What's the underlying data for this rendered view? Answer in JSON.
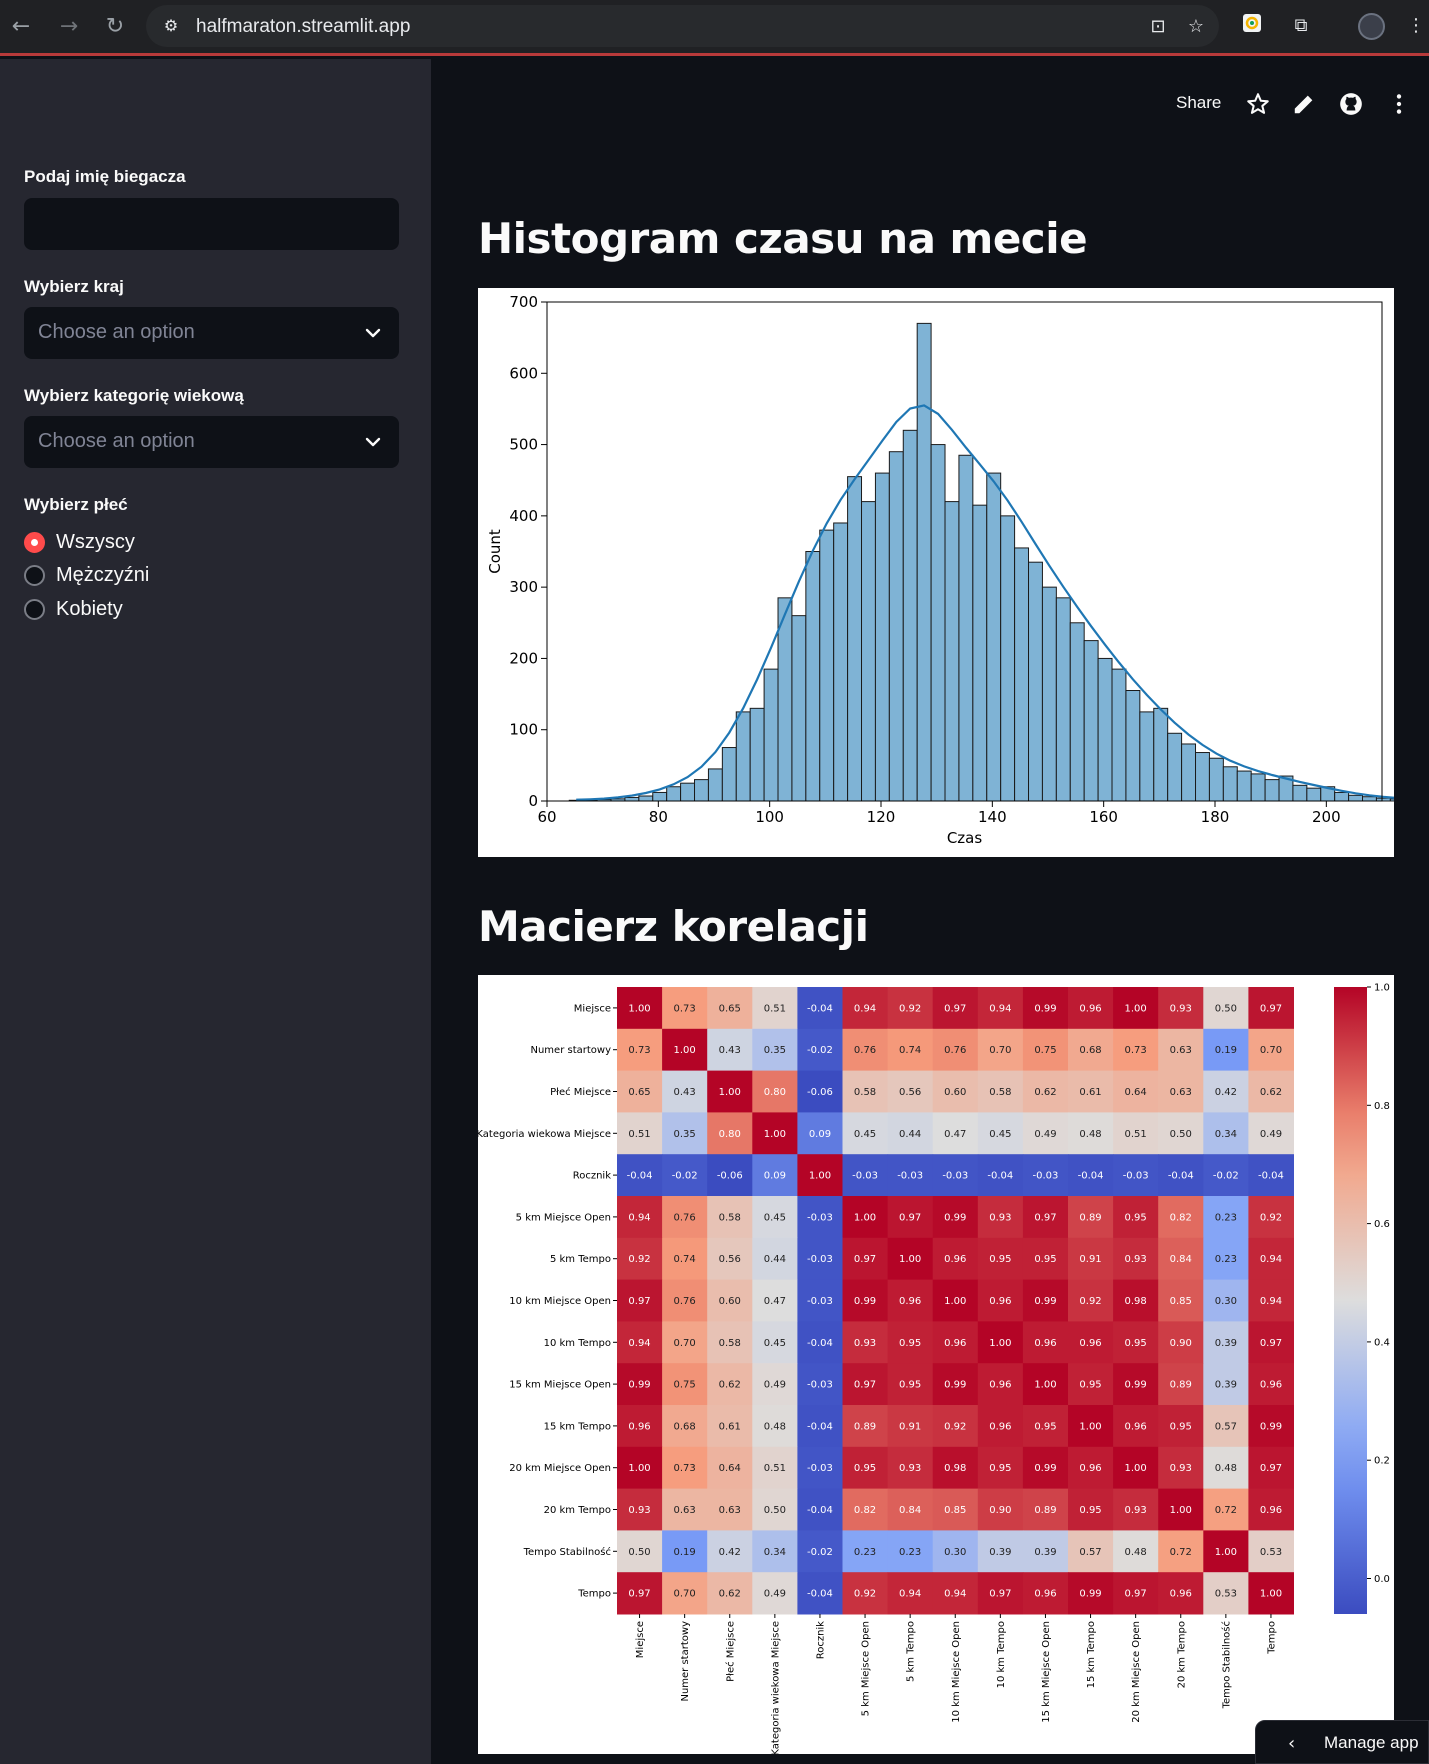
{
  "browser": {
    "url": "halfmaraton.streamlit.app"
  },
  "sidebar": {
    "name_label": "Podaj imię biegacza",
    "name_value": "",
    "country_label": "Wybierz kraj",
    "country_placeholder": "Choose an option",
    "age_label": "Wybierz kategorię wiekową",
    "age_placeholder": "Choose an option",
    "gender_label": "Wybierz płeć",
    "gender_options": [
      "Wszyscy",
      "Mężczyźni",
      "Kobiety"
    ],
    "gender_selected": "Wszyscy"
  },
  "header": {
    "share_label": "Share"
  },
  "sections": {
    "histogram_title": "Histogram czasu na mecie",
    "correlation_title": "Macierz korelacji"
  },
  "manage_app_label": "Manage app",
  "chart_data": [
    {
      "type": "bar",
      "chart": "histogram",
      "xlabel": "Czas",
      "ylabel": "Count",
      "xlim": [
        60,
        210
      ],
      "ylim": [
        0,
        700
      ],
      "xticks": [
        60,
        80,
        100,
        120,
        140,
        160,
        180,
        200
      ],
      "yticks": [
        0,
        100,
        200,
        300,
        400,
        500,
        600,
        700
      ],
      "bin_start": 64,
      "bin_width": 2.5,
      "values": [
        1,
        1,
        2,
        3,
        5,
        7,
        12,
        20,
        25,
        30,
        45,
        75,
        125,
        130,
        185,
        285,
        260,
        350,
        380,
        390,
        455,
        420,
        460,
        490,
        520,
        670,
        500,
        420,
        485,
        415,
        460,
        400,
        355,
        335,
        300,
        285,
        250,
        225,
        200,
        185,
        155,
        125,
        130,
        95,
        80,
        68,
        60,
        48,
        42,
        38,
        30,
        35,
        22,
        18,
        20,
        12,
        8,
        6,
        4,
        3,
        2,
        1
      ],
      "kde_peak_x": 118,
      "kde_peak_y": 555,
      "bar_color": "#7fb3d5",
      "line_color": "#1f77b4"
    },
    {
      "type": "heatmap",
      "labels": [
        "Miejsce",
        "Numer startowy",
        "Płeć Miejsce",
        "Kategoria wiekowa Miejsce",
        "Rocznik",
        "5 km Miejsce Open",
        "5 km Tempo",
        "10 km Miejsce Open",
        "10 km Tempo",
        "15 km Miejsce Open",
        "15 km Tempo",
        "20 km Miejsce Open",
        "20 km Tempo",
        "Tempo Stabilność",
        "Tempo"
      ],
      "matrix": [
        [
          1.0,
          0.73,
          0.65,
          0.51,
          -0.04,
          0.94,
          0.92,
          0.97,
          0.94,
          0.99,
          0.96,
          1.0,
          0.93,
          0.5,
          0.97
        ],
        [
          0.73,
          1.0,
          0.43,
          0.35,
          -0.02,
          0.76,
          0.74,
          0.76,
          0.7,
          0.75,
          0.68,
          0.73,
          0.63,
          0.19,
          0.7
        ],
        [
          0.65,
          0.43,
          1.0,
          0.8,
          -0.06,
          0.58,
          0.56,
          0.6,
          0.58,
          0.62,
          0.61,
          0.64,
          0.63,
          0.42,
          0.62
        ],
        [
          0.51,
          0.35,
          0.8,
          1.0,
          0.09,
          0.45,
          0.44,
          0.47,
          0.45,
          0.49,
          0.48,
          0.51,
          0.5,
          0.34,
          0.49
        ],
        [
          -0.04,
          -0.02,
          -0.06,
          0.09,
          1.0,
          -0.03,
          -0.03,
          -0.03,
          -0.04,
          -0.03,
          -0.04,
          -0.03,
          -0.04,
          -0.02,
          -0.04
        ],
        [
          0.94,
          0.76,
          0.58,
          0.45,
          -0.03,
          1.0,
          0.97,
          0.99,
          0.93,
          0.97,
          0.89,
          0.95,
          0.82,
          0.23,
          0.92
        ],
        [
          0.92,
          0.74,
          0.56,
          0.44,
          -0.03,
          0.97,
          1.0,
          0.96,
          0.95,
          0.95,
          0.91,
          0.93,
          0.84,
          0.23,
          0.94
        ],
        [
          0.97,
          0.76,
          0.6,
          0.47,
          -0.03,
          0.99,
          0.96,
          1.0,
          0.96,
          0.99,
          0.92,
          0.98,
          0.85,
          0.3,
          0.94
        ],
        [
          0.94,
          0.7,
          0.58,
          0.45,
          -0.04,
          0.93,
          0.95,
          0.96,
          1.0,
          0.96,
          0.96,
          0.95,
          0.9,
          0.39,
          0.97
        ],
        [
          0.99,
          0.75,
          0.62,
          0.49,
          -0.03,
          0.97,
          0.95,
          0.99,
          0.96,
          1.0,
          0.95,
          0.99,
          0.89,
          0.39,
          0.96
        ],
        [
          0.96,
          0.68,
          0.61,
          0.48,
          -0.04,
          0.89,
          0.91,
          0.92,
          0.96,
          0.95,
          1.0,
          0.96,
          0.95,
          0.57,
          0.99
        ],
        [
          1.0,
          0.73,
          0.64,
          0.51,
          -0.03,
          0.95,
          0.93,
          0.98,
          0.95,
          0.99,
          0.96,
          1.0,
          0.93,
          0.48,
          0.97
        ],
        [
          0.93,
          0.63,
          0.63,
          0.5,
          -0.04,
          0.82,
          0.84,
          0.85,
          0.9,
          0.89,
          0.95,
          0.93,
          1.0,
          0.72,
          0.96
        ],
        [
          0.5,
          0.19,
          0.42,
          0.34,
          -0.02,
          0.23,
          0.23,
          0.3,
          0.39,
          0.39,
          0.57,
          0.48,
          0.72,
          1.0,
          0.53
        ],
        [
          0.97,
          0.7,
          0.62,
          0.49,
          -0.04,
          0.92,
          0.94,
          0.94,
          0.97,
          0.96,
          0.99,
          0.97,
          0.96,
          0.53,
          1.0
        ]
      ],
      "colorbar_range": [
        -0.06,
        1.0
      ],
      "colorbar_ticks": [
        "0.0",
        "0.2",
        "0.4",
        "0.6",
        "0.8",
        "1.0"
      ],
      "colormap": "coolwarm"
    }
  ]
}
